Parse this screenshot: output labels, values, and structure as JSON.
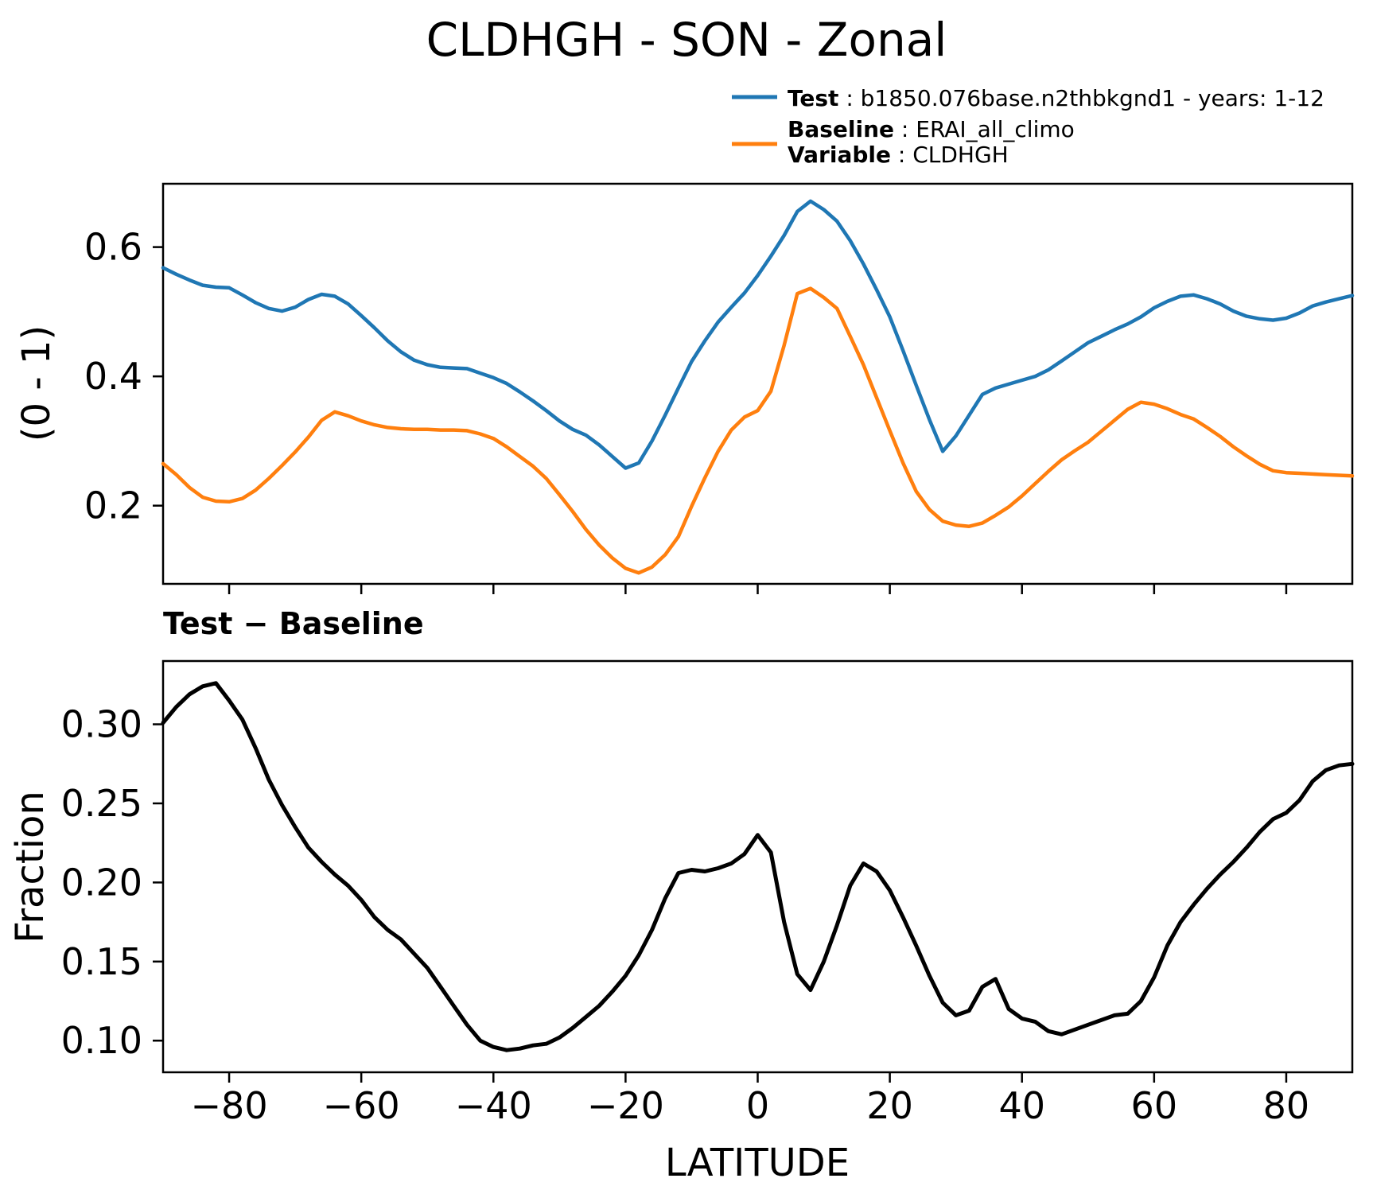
{
  "title": "CLDHGH - SON - Zonal",
  "legend": {
    "test_label": "Test",
    "test_value": " : b1850.076base.n2thbkgnd1 - years: 1-12",
    "baseline_label": "Baseline",
    "baseline_value": " : ERAI_all_climo",
    "variable_label": "Variable",
    "variable_value": " : CLDHGH"
  },
  "colors": {
    "test": "#1f77b4",
    "baseline": "#ff7f0e",
    "difference": "#000000",
    "axis": "#000000",
    "background": "#ffffff"
  },
  "chart_data": [
    {
      "type": "line",
      "title": "",
      "xlabel": "",
      "ylabel": "(0 - 1)",
      "xlim": [
        -90,
        90
      ],
      "ylim": [
        0.079,
        0.698
      ],
      "grid": false,
      "legend_position": "above upper right",
      "xticks": [
        -80,
        -60,
        -40,
        -20,
        0,
        20,
        40,
        60,
        80
      ],
      "xtick_labels": [
        "−80",
        "−60",
        "−40",
        "−20",
        "0",
        "20",
        "40",
        "60",
        "80"
      ],
      "yticks": [
        0.2,
        0.4,
        0.6
      ],
      "ytick_labels": [
        "0.2",
        "0.4",
        "0.6"
      ],
      "x": [
        -90,
        -88,
        -86,
        -84,
        -82,
        -80,
        -78,
        -76,
        -74,
        -72,
        -70,
        -68,
        -66,
        -64,
        -62,
        -60,
        -58,
        -56,
        -54,
        -52,
        -50,
        -48,
        -46,
        -44,
        -42,
        -40,
        -38,
        -36,
        -34,
        -32,
        -30,
        -28,
        -26,
        -24,
        -22,
        -20,
        -18,
        -16,
        -14,
        -12,
        -10,
        -8,
        -6,
        -4,
        -2,
        0,
        2,
        4,
        6,
        8,
        10,
        12,
        14,
        16,
        18,
        20,
        22,
        24,
        26,
        28,
        30,
        32,
        34,
        36,
        38,
        40,
        42,
        44,
        46,
        48,
        50,
        52,
        54,
        56,
        58,
        60,
        62,
        64,
        66,
        68,
        70,
        72,
        74,
        76,
        78,
        80,
        82,
        84,
        86,
        88,
        90
      ],
      "series": [
        {
          "name": "Test",
          "color": "#1f77b4",
          "values": [
            0.568,
            0.558,
            0.549,
            0.541,
            0.538,
            0.537,
            0.526,
            0.514,
            0.505,
            0.501,
            0.507,
            0.519,
            0.527,
            0.524,
            0.512,
            0.494,
            0.475,
            0.455,
            0.438,
            0.425,
            0.418,
            0.414,
            0.413,
            0.412,
            0.405,
            0.398,
            0.389,
            0.376,
            0.362,
            0.347,
            0.331,
            0.318,
            0.309,
            0.294,
            0.276,
            0.258,
            0.266,
            0.3,
            0.34,
            0.382,
            0.423,
            0.455,
            0.484,
            0.507,
            0.529,
            0.556,
            0.586,
            0.618,
            0.655,
            0.671,
            0.658,
            0.64,
            0.61,
            0.574,
            0.534,
            0.492,
            0.44,
            0.386,
            0.333,
            0.284,
            0.308,
            0.34,
            0.372,
            0.382,
            0.388,
            0.394,
            0.4,
            0.41,
            0.424,
            0.438,
            0.452,
            0.462,
            0.472,
            0.481,
            0.492,
            0.506,
            0.516,
            0.524,
            0.526,
            0.52,
            0.512,
            0.501,
            0.493,
            0.489,
            0.487,
            0.49,
            0.498,
            0.509,
            0.515,
            0.52,
            0.525
          ]
        },
        {
          "name": "Baseline",
          "color": "#ff7f0e",
          "values": [
            0.265,
            0.248,
            0.228,
            0.213,
            0.207,
            0.206,
            0.211,
            0.224,
            0.242,
            0.262,
            0.283,
            0.306,
            0.332,
            0.345,
            0.339,
            0.331,
            0.325,
            0.321,
            0.319,
            0.318,
            0.318,
            0.317,
            0.317,
            0.316,
            0.311,
            0.304,
            0.291,
            0.276,
            0.261,
            0.242,
            0.217,
            0.191,
            0.163,
            0.139,
            0.119,
            0.103,
            0.096,
            0.105,
            0.124,
            0.152,
            0.199,
            0.243,
            0.284,
            0.317,
            0.337,
            0.347,
            0.377,
            0.448,
            0.528,
            0.536,
            0.522,
            0.505,
            0.462,
            0.418,
            0.367,
            0.316,
            0.266,
            0.222,
            0.194,
            0.176,
            0.17,
            0.168,
            0.173,
            0.185,
            0.198,
            0.215,
            0.234,
            0.253,
            0.271,
            0.285,
            0.298,
            0.315,
            0.332,
            0.349,
            0.36,
            0.357,
            0.35,
            0.341,
            0.334,
            0.321,
            0.307,
            0.291,
            0.277,
            0.264,
            0.254,
            0.251,
            0.25,
            0.249,
            0.248,
            0.247,
            0.246
          ]
        }
      ]
    },
    {
      "type": "line",
      "title": "Test − Baseline",
      "xlabel": "LATITUDE",
      "ylabel": "Fraction",
      "xlim": [
        -90,
        90
      ],
      "ylim": [
        0.08,
        0.34
      ],
      "grid": false,
      "xticks": [
        -80,
        -60,
        -40,
        -20,
        0,
        20,
        40,
        60,
        80
      ],
      "xtick_labels": [
        "−80",
        "−60",
        "−40",
        "−20",
        "0",
        "20",
        "40",
        "60",
        "80"
      ],
      "yticks": [
        0.1,
        0.15,
        0.2,
        0.25,
        0.3
      ],
      "ytick_labels": [
        "0.10",
        "0.15",
        "0.20",
        "0.25",
        "0.30"
      ],
      "x": [
        -90,
        -88,
        -86,
        -84,
        -82,
        -80,
        -78,
        -76,
        -74,
        -72,
        -70,
        -68,
        -66,
        -64,
        -62,
        -60,
        -58,
        -56,
        -54,
        -52,
        -50,
        -48,
        -46,
        -44,
        -42,
        -40,
        -38,
        -36,
        -34,
        -32,
        -30,
        -28,
        -26,
        -24,
        -22,
        -20,
        -18,
        -16,
        -14,
        -12,
        -10,
        -8,
        -6,
        -4,
        -2,
        0,
        2,
        4,
        6,
        8,
        10,
        12,
        14,
        16,
        18,
        20,
        22,
        24,
        26,
        28,
        30,
        32,
        34,
        36,
        38,
        40,
        42,
        44,
        46,
        48,
        50,
        52,
        54,
        56,
        58,
        60,
        62,
        64,
        66,
        68,
        70,
        72,
        74,
        76,
        78,
        80,
        82,
        84,
        86,
        88,
        90
      ],
      "series": [
        {
          "name": "Test − Baseline",
          "color": "#000000",
          "values": [
            0.301,
            0.311,
            0.319,
            0.324,
            0.326,
            0.315,
            0.303,
            0.285,
            0.265,
            0.249,
            0.235,
            0.222,
            0.213,
            0.205,
            0.198,
            0.189,
            0.178,
            0.17,
            0.164,
            0.155,
            0.146,
            0.134,
            0.122,
            0.11,
            0.1,
            0.096,
            0.094,
            0.095,
            0.097,
            0.098,
            0.102,
            0.108,
            0.115,
            0.122,
            0.131,
            0.141,
            0.154,
            0.17,
            0.19,
            0.206,
            0.208,
            0.207,
            0.209,
            0.212,
            0.218,
            0.23,
            0.219,
            0.175,
            0.142,
            0.132,
            0.15,
            0.173,
            0.198,
            0.212,
            0.207,
            0.195,
            0.178,
            0.16,
            0.141,
            0.124,
            0.116,
            0.119,
            0.134,
            0.139,
            0.12,
            0.114,
            0.112,
            0.106,
            0.104,
            0.107,
            0.11,
            0.113,
            0.116,
            0.117,
            0.125,
            0.14,
            0.16,
            0.175,
            0.186,
            0.196,
            0.205,
            0.213,
            0.222,
            0.232,
            0.24,
            0.244,
            0.252,
            0.264,
            0.271,
            0.274,
            0.275
          ]
        }
      ]
    }
  ]
}
